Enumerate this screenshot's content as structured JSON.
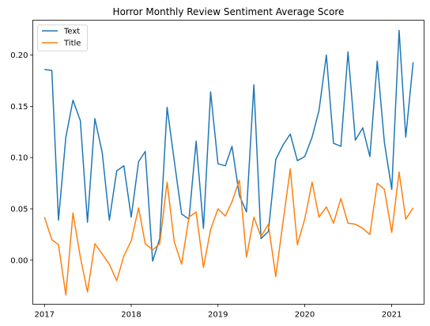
{
  "chart_data": {
    "type": "line",
    "title": "Horror Monthly Review Sentiment Average Score",
    "xlabel": "",
    "ylabel": "",
    "xlim": [
      "2016-11-13",
      "2021-05-17"
    ],
    "ylim": [
      -0.043,
      0.234
    ],
    "x_ticks": [
      "2017",
      "2018",
      "2019",
      "2020",
      "2021"
    ],
    "y_ticks": [
      "0.00",
      "0.05",
      "0.10",
      "0.15",
      "0.20"
    ],
    "y_tick_values": [
      0.0,
      0.05,
      0.1,
      0.15,
      0.2
    ],
    "grid": false,
    "legend_position": "top-left",
    "x": [
      "2017-01",
      "2017-02",
      "2017-03",
      "2017-04",
      "2017-05",
      "2017-06",
      "2017-07",
      "2017-08",
      "2017-09",
      "2017-10",
      "2017-11",
      "2017-12",
      "2018-01",
      "2018-02",
      "2018-03",
      "2018-04",
      "2018-05",
      "2018-06",
      "2018-07",
      "2018-08",
      "2018-09",
      "2018-10",
      "2018-11",
      "2018-12",
      "2019-01",
      "2019-02",
      "2019-03",
      "2019-04",
      "2019-05",
      "2019-06",
      "2019-07",
      "2019-08",
      "2019-09",
      "2019-10",
      "2019-11",
      "2019-12",
      "2020-01",
      "2020-02",
      "2020-03",
      "2020-04",
      "2020-05",
      "2020-06",
      "2020-07",
      "2020-08",
      "2020-09",
      "2020-10",
      "2020-11",
      "2020-12",
      "2021-01",
      "2021-02",
      "2021-03",
      "2021-04"
    ],
    "series": [
      {
        "name": "Text",
        "color": "#1f77b4",
        "values": [
          0.186,
          0.185,
          0.039,
          0.12,
          0.156,
          0.136,
          0.037,
          0.138,
          0.105,
          0.039,
          0.087,
          0.092,
          0.042,
          0.096,
          0.106,
          -0.001,
          0.021,
          0.149,
          0.097,
          0.045,
          0.04,
          0.116,
          0.031,
          0.164,
          0.094,
          0.092,
          0.111,
          0.063,
          0.047,
          0.171,
          0.021,
          0.028,
          0.098,
          0.112,
          0.123,
          0.097,
          0.101,
          0.12,
          0.146,
          0.2,
          0.114,
          0.111,
          0.203,
          0.117,
          0.129,
          0.101,
          0.194,
          0.115,
          0.069,
          0.224,
          0.12,
          0.193
        ]
      },
      {
        "name": "Title",
        "color": "#ff7f0e",
        "values": [
          0.042,
          0.02,
          0.015,
          -0.034,
          0.046,
          0.003,
          -0.031,
          0.016,
          0.006,
          -0.004,
          -0.02,
          0.004,
          0.019,
          0.051,
          0.016,
          0.01,
          0.016,
          0.076,
          0.018,
          -0.004,
          0.042,
          0.047,
          -0.007,
          0.03,
          0.05,
          0.043,
          0.057,
          0.078,
          0.003,
          0.042,
          0.023,
          0.035,
          -0.016,
          0.036,
          0.089,
          0.015,
          0.04,
          0.076,
          0.042,
          0.052,
          0.036,
          0.06,
          0.036,
          0.035,
          0.031,
          0.025,
          0.075,
          0.069,
          0.027,
          0.086,
          0.04,
          0.051
        ]
      }
    ]
  }
}
